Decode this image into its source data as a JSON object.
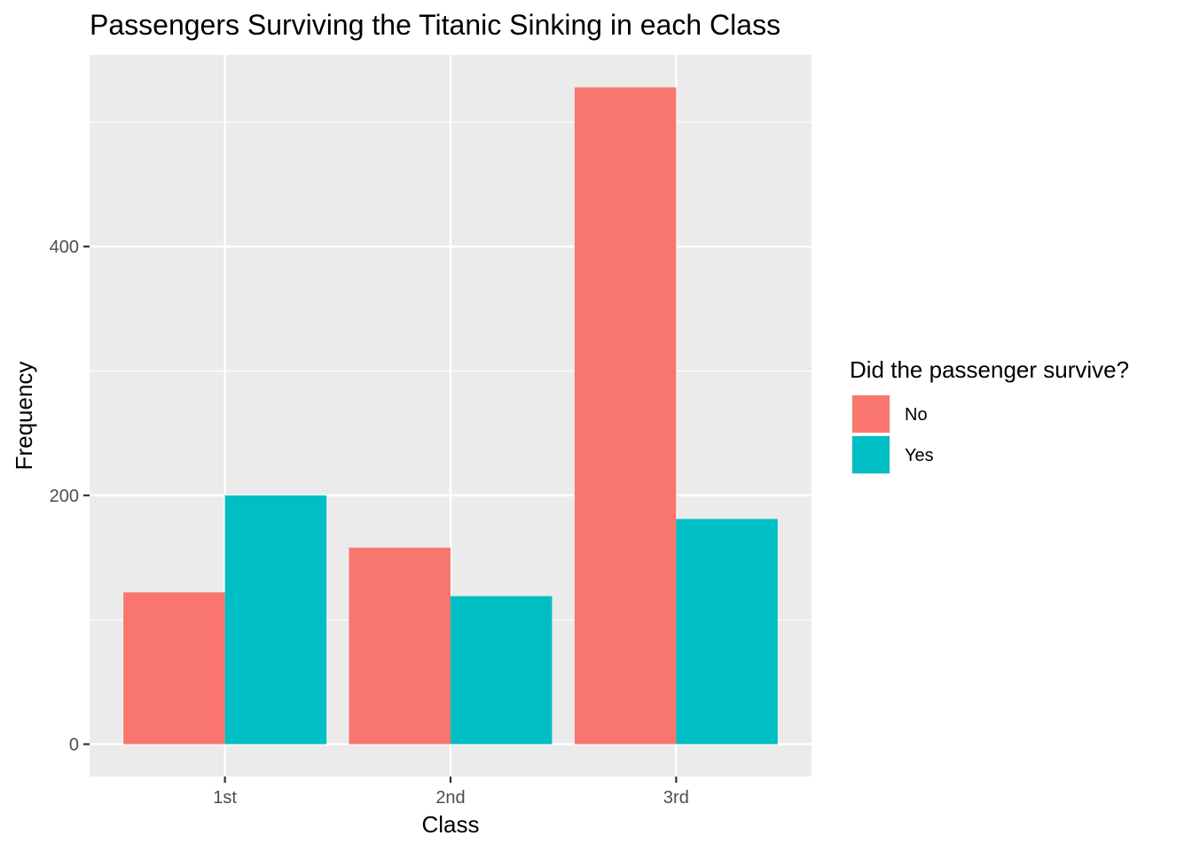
{
  "chart_data": {
    "type": "bar",
    "title": "Passengers Surviving the Titanic Sinking in each Class",
    "xlabel": "Class",
    "ylabel": "Frequency",
    "categories": [
      "1st",
      "2nd",
      "3rd"
    ],
    "series": [
      {
        "name": "No",
        "values": [
          122,
          158,
          528
        ],
        "color": "#F8766D"
      },
      {
        "name": "Yes",
        "values": [
          200,
          119,
          181
        ],
        "color": "#00BFC4"
      }
    ],
    "ylim": [
      -26,
      554
    ],
    "yticks": [
      0,
      200,
      400
    ],
    "grid": true,
    "panel_color": "#EBEBEB",
    "grid_color": "#FFFFFF",
    "legend": {
      "title": "Did the passenger survive?",
      "placement": "right"
    }
  }
}
